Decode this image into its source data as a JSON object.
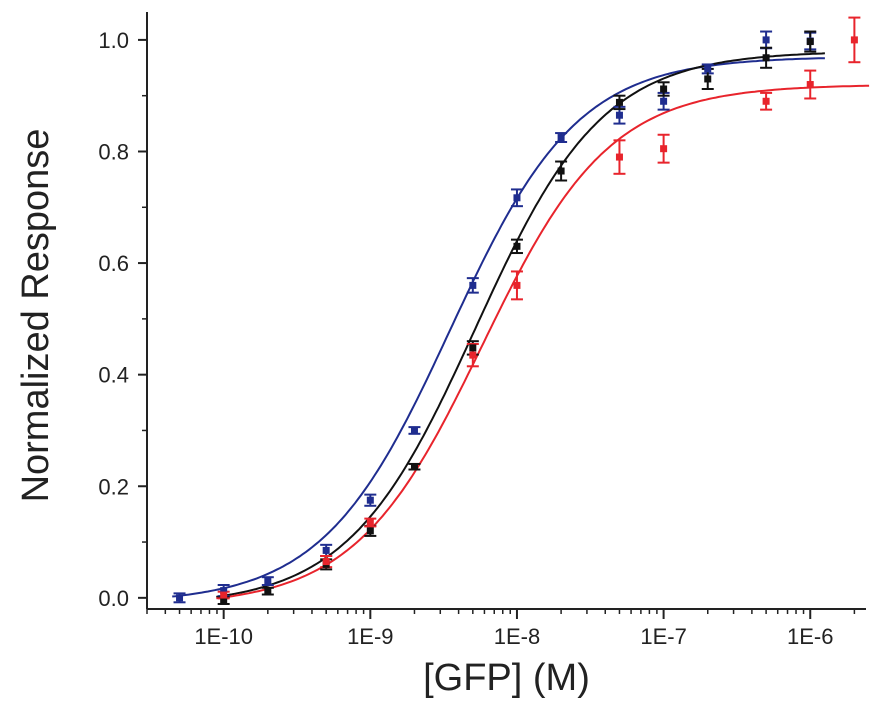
{
  "chart_data": {
    "type": "scatter",
    "title": "",
    "xlabel": "[GFP] (M)",
    "ylabel": "Normalized Response",
    "xscale": "log",
    "xlim": [
      3e-11,
      2.4e-06
    ],
    "ylim": [
      -0.02,
      1.05
    ],
    "x_ticks": [
      1e-10,
      1e-09,
      1e-08,
      1e-07,
      1e-06
    ],
    "x_tick_labels": [
      "1E-10",
      "1E-9",
      "1E-8",
      "1E-7",
      "1E-6"
    ],
    "y_ticks": [
      0.0,
      0.2,
      0.4,
      0.6,
      0.8,
      1.0
    ],
    "y_tick_labels": [
      "0.0",
      "0.2",
      "0.4",
      "0.6",
      "0.8",
      "1.0"
    ],
    "grid": false,
    "legend": "none",
    "series": [
      {
        "color": "#1f2d8f",
        "points": [
          {
            "x": 5e-11,
            "y": 0.0,
            "err": 0.008
          },
          {
            "x": 1e-10,
            "y": 0.013,
            "err": 0.01
          },
          {
            "x": 2e-10,
            "y": 0.03,
            "err": 0.007
          },
          {
            "x": 5e-10,
            "y": 0.085,
            "err": 0.01
          },
          {
            "x": 1e-09,
            "y": 0.175,
            "err": 0.01
          },
          {
            "x": 2e-09,
            "y": 0.3,
            "err": 0.006
          },
          {
            "x": 5e-09,
            "y": 0.56,
            "err": 0.013
          },
          {
            "x": 1e-08,
            "y": 0.717,
            "err": 0.015
          },
          {
            "x": 2e-08,
            "y": 0.825,
            "err": 0.008
          },
          {
            "x": 5e-08,
            "y": 0.865,
            "err": 0.015
          },
          {
            "x": 1e-07,
            "y": 0.89,
            "err": 0.015
          },
          {
            "x": 2e-07,
            "y": 0.948,
            "err": 0.008
          },
          {
            "x": 5e-07,
            "y": 1.0,
            "err": 0.015
          },
          {
            "x": 1e-06,
            "y": 0.998,
            "err": 0.015
          }
        ],
        "fit": {
          "bottom": -0.01,
          "top": 0.97,
          "ec50": 3.5e-09,
          "hill": 1.0
        }
      },
      {
        "color": "#111111",
        "points": [
          {
            "x": 1e-10,
            "y": -0.005,
            "err": 0.006
          },
          {
            "x": 2e-10,
            "y": 0.012,
            "err": 0.006
          },
          {
            "x": 5e-10,
            "y": 0.06,
            "err": 0.009
          },
          {
            "x": 1e-09,
            "y": 0.12,
            "err": 0.009
          },
          {
            "x": 2e-09,
            "y": 0.235,
            "err": 0.005
          },
          {
            "x": 5e-09,
            "y": 0.448,
            "err": 0.012
          },
          {
            "x": 1e-08,
            "y": 0.63,
            "err": 0.012
          },
          {
            "x": 2e-08,
            "y": 0.765,
            "err": 0.017
          },
          {
            "x": 5e-08,
            "y": 0.888,
            "err": 0.012
          },
          {
            "x": 1e-07,
            "y": 0.912,
            "err": 0.012
          },
          {
            "x": 2e-07,
            "y": 0.93,
            "err": 0.018
          },
          {
            "x": 5e-07,
            "y": 0.968,
            "err": 0.018
          },
          {
            "x": 1e-06,
            "y": 0.997,
            "err": 0.018
          }
        ],
        "fit": {
          "bottom": -0.015,
          "top": 0.98,
          "ec50": 5.2e-09,
          "hill": 1.0
        }
      },
      {
        "color": "#e8242c",
        "points": [
          {
            "x": 1e-10,
            "y": 0.005,
            "err": 0.006
          },
          {
            "x": 5e-10,
            "y": 0.065,
            "err": 0.01
          },
          {
            "x": 1e-09,
            "y": 0.135,
            "err": 0.007
          },
          {
            "x": 5e-09,
            "y": 0.435,
            "err": 0.02
          },
          {
            "x": 1e-08,
            "y": 0.56,
            "err": 0.025
          },
          {
            "x": 5e-08,
            "y": 0.79,
            "err": 0.03
          },
          {
            "x": 1e-07,
            "y": 0.805,
            "err": 0.025
          },
          {
            "x": 5e-07,
            "y": 0.89,
            "err": 0.015
          },
          {
            "x": 1e-06,
            "y": 0.92,
            "err": 0.025
          },
          {
            "x": 2e-06,
            "y": 1.0,
            "err": 0.04
          }
        ],
        "fit": {
          "bottom": -0.015,
          "top": 0.92,
          "ec50": 5.8e-09,
          "hill": 1.0
        }
      }
    ]
  }
}
